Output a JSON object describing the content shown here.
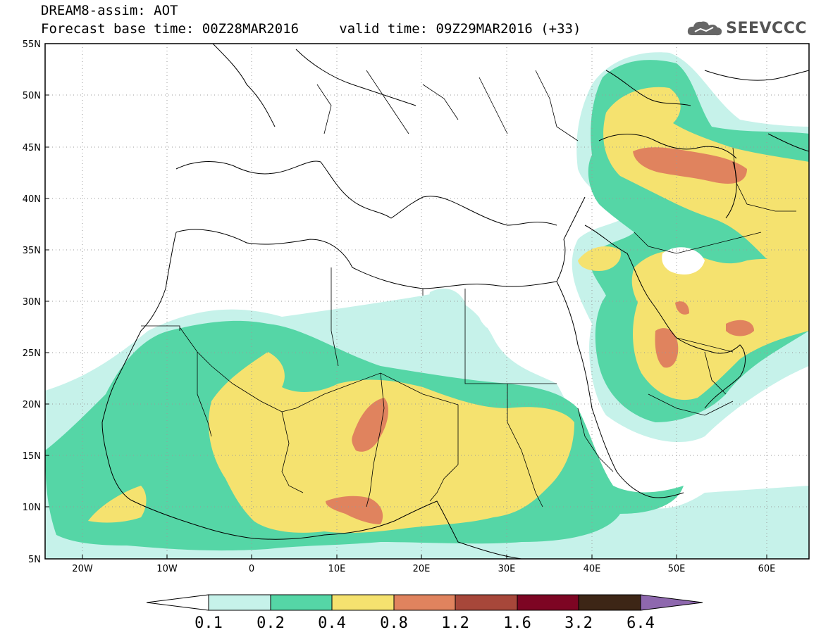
{
  "header": {
    "line1": "DREAM8-assim: AOT",
    "line2": "Forecast base time: 00Z28MAR2016     valid time: 09Z29MAR2016 (+33)",
    "brand": "SEEVCCC"
  },
  "map": {
    "lon_range": [
      -25,
      65
    ],
    "lat_range": [
      5,
      55
    ],
    "lat_ticks": [
      "55N",
      "50N",
      "45N",
      "40N",
      "35N",
      "30N",
      "25N",
      "20N",
      "15N",
      "10N",
      "5N"
    ],
    "lon_ticks": [
      "20W",
      "10W",
      "0",
      "10E",
      "20E",
      "30E",
      "40E",
      "50E",
      "60E"
    ],
    "grid": "dotted"
  },
  "colorbar": {
    "labels": [
      "0.1",
      "0.2",
      "0.4",
      "0.8",
      "1.2",
      "1.6",
      "3.2",
      "6.4"
    ],
    "colors": [
      "#ffffff",
      "#c6f2ea",
      "#55d6a6",
      "#f5e26f",
      "#e0835e",
      "#a7473a",
      "#7d0523",
      "#3d2616",
      "#8e68ae"
    ]
  }
}
